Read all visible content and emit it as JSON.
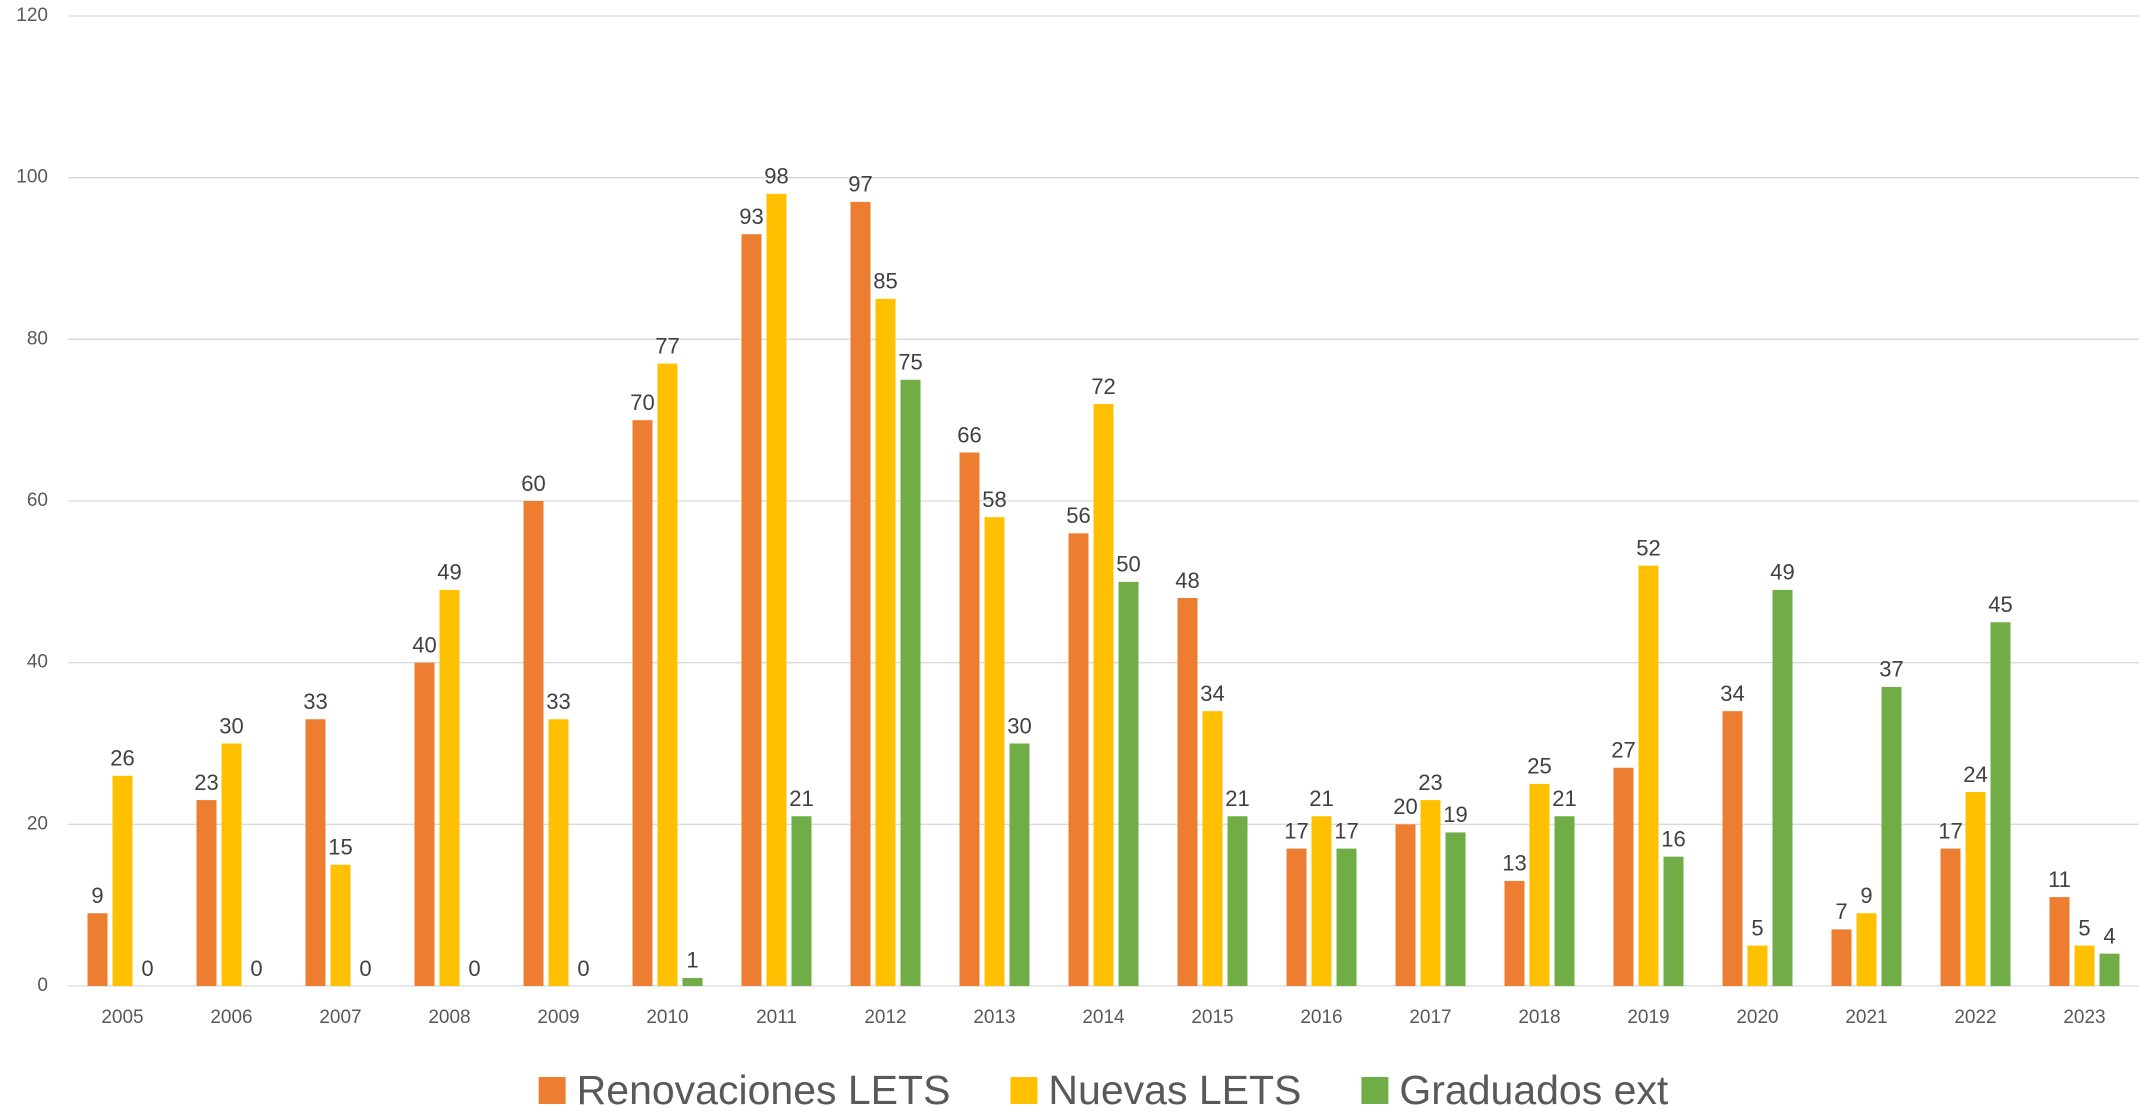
{
  "chart_data": {
    "type": "bar",
    "categories": [
      "2005",
      "2006",
      "2007",
      "2008",
      "2009",
      "2010",
      "2011",
      "2012",
      "2013",
      "2014",
      "2015",
      "2016",
      "2017",
      "2018",
      "2019",
      "2020",
      "2021",
      "2022",
      "2023"
    ],
    "series": [
      {
        "name": "Renovaciones LETS",
        "color": "#ed7d31",
        "values": [
          9,
          23,
          33,
          40,
          60,
          70,
          93,
          97,
          66,
          56,
          48,
          17,
          20,
          13,
          27,
          34,
          7,
          17,
          11
        ]
      },
      {
        "name": "Nuevas LETS",
        "color": "#ffc000",
        "values": [
          26,
          30,
          15,
          49,
          33,
          77,
          98,
          85,
          58,
          72,
          34,
          21,
          23,
          25,
          52,
          5,
          9,
          24,
          5
        ]
      },
      {
        "name": "Graduados ext",
        "color": "#70ad47",
        "values": [
          0,
          0,
          0,
          0,
          0,
          1,
          21,
          75,
          30,
          50,
          21,
          17,
          19,
          21,
          16,
          49,
          37,
          45,
          4
        ]
      }
    ],
    "ylim": [
      0,
      120
    ],
    "yticks": [
      0,
      20,
      40,
      60,
      80,
      100,
      120
    ],
    "grid": true,
    "legend": "bottom"
  }
}
